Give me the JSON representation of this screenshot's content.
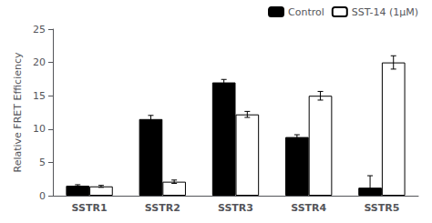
{
  "chart_data": {
    "type": "bar",
    "categories": [
      "SSTR1",
      "SSTR2",
      "SSTR3",
      "SSTR4",
      "SSTR5"
    ],
    "series": [
      {
        "name": "Control",
        "color": "#000000",
        "values": [
          1.5,
          11.5,
          17.0,
          8.8,
          1.2
        ],
        "errors": [
          0.15,
          0.55,
          0.45,
          0.35,
          1.8
        ]
      },
      {
        "name": "SST-14 (1μM)",
        "color": "#ffffff",
        "values": [
          1.4,
          2.1,
          12.2,
          15.0,
          20.0
        ],
        "errors": [
          0.15,
          0.25,
          0.45,
          0.65,
          1.0
        ]
      }
    ],
    "ylabel": "Relative FRET Efficiency",
    "ylim": [
      0,
      25
    ],
    "yticks": [
      0,
      5,
      10,
      15,
      20,
      25
    ],
    "legend": "upper right",
    "grid": false
  }
}
